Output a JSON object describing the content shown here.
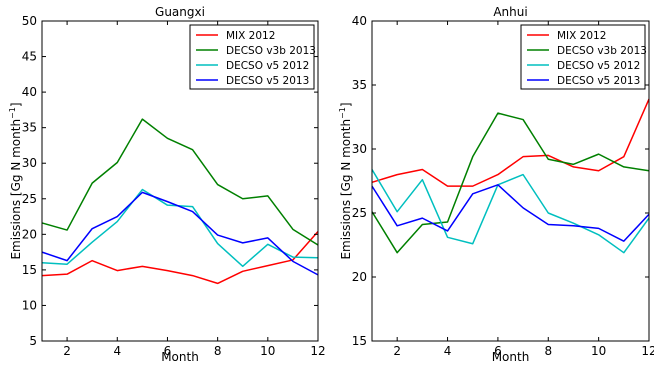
{
  "chart_data": [
    {
      "type": "line",
      "title": "Guangxi",
      "xlabel": "Month",
      "ylabel": "Emissions [Gg N month",
      "ylabel_sup": "−1",
      "ylabel_end": "]",
      "xlim": [
        1,
        12
      ],
      "ylim": [
        5,
        50
      ],
      "xticks": [
        2,
        4,
        6,
        8,
        10,
        12
      ],
      "yticks": [
        5,
        10,
        15,
        20,
        25,
        30,
        35,
        40,
        45,
        50
      ],
      "grid": false,
      "legend_loc": "top-right",
      "x": [
        1,
        2,
        3,
        4,
        5,
        6,
        7,
        8,
        9,
        10,
        11,
        12
      ],
      "series": [
        {
          "name": "MIX 2012",
          "color": "#ff0000",
          "values": [
            14.2,
            14.4,
            16.3,
            14.9,
            15.5,
            14.9,
            14.2,
            13.1,
            14.8,
            15.6,
            16.4,
            20.4
          ]
        },
        {
          "name": "DECSO v3b 2013",
          "color": "#008000",
          "values": [
            21.6,
            20.6,
            27.2,
            30.1,
            36.2,
            33.5,
            31.9,
            27.0,
            25.0,
            25.4,
            20.7,
            18.5
          ]
        },
        {
          "name": "DECSO v5 2012",
          "color": "#00bfbf",
          "values": [
            16.0,
            15.8,
            18.9,
            21.8,
            26.3,
            24.1,
            23.9,
            18.7,
            15.5,
            18.6,
            16.8,
            16.7
          ]
        },
        {
          "name": "DECSO v5 2013",
          "color": "#0000ff",
          "values": [
            17.5,
            16.3,
            20.8,
            22.5,
            25.9,
            24.6,
            23.2,
            19.9,
            18.8,
            19.5,
            16.2,
            14.3
          ]
        }
      ]
    },
    {
      "type": "line",
      "title": "Anhui",
      "xlabel": "Month",
      "ylabel": "Emissions [Gg N month",
      "ylabel_sup": "−1",
      "ylabel_end": "]",
      "xlim": [
        1,
        12
      ],
      "ylim": [
        15,
        40
      ],
      "xticks": [
        2,
        4,
        6,
        8,
        10,
        12
      ],
      "yticks": [
        15,
        20,
        25,
        30,
        35,
        40
      ],
      "grid": false,
      "legend_loc": "top-right",
      "x": [
        1,
        2,
        3,
        4,
        5,
        6,
        7,
        8,
        9,
        10,
        11,
        12
      ],
      "series": [
        {
          "name": "MIX 2012",
          "color": "#ff0000",
          "values": [
            27.4,
            28.0,
            28.4,
            27.1,
            27.1,
            28.0,
            29.4,
            29.5,
            28.6,
            28.3,
            29.4,
            33.9
          ]
        },
        {
          "name": "DECSO v3b 2013",
          "color": "#008000",
          "values": [
            25.1,
            21.9,
            24.1,
            24.3,
            29.4,
            32.8,
            32.3,
            29.2,
            28.8,
            29.6,
            28.6,
            28.3
          ]
        },
        {
          "name": "DECSO v5 2012",
          "color": "#00bfbf",
          "values": [
            28.4,
            25.1,
            27.6,
            23.1,
            22.6,
            27.2,
            28.0,
            25.0,
            24.2,
            23.3,
            21.9,
            24.6
          ]
        },
        {
          "name": "DECSO v5 2013",
          "color": "#0000ff",
          "values": [
            27.1,
            24.0,
            24.6,
            23.6,
            26.5,
            27.2,
            25.4,
            24.1,
            24.0,
            23.8,
            22.8,
            24.9
          ]
        }
      ]
    }
  ]
}
